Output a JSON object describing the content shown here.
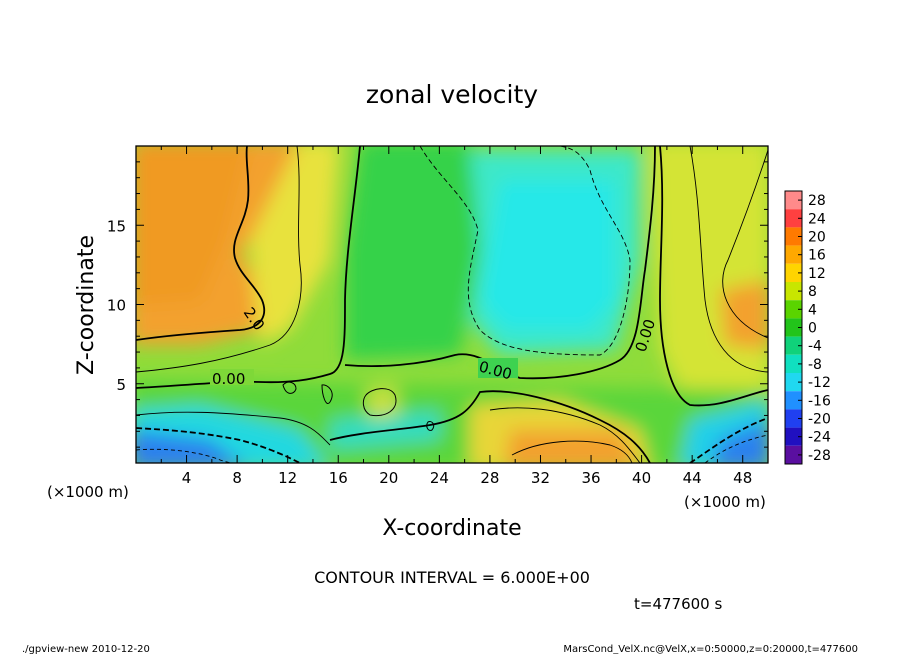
{
  "chart_data": {
    "type": "heatmap",
    "title": "zonal velocity",
    "xlabel": "X-coordinate",
    "ylabel": "Z-coordinate",
    "x_unit": "(×1000 m)",
    "x_unit_secondary": "(×1000 m)",
    "xlim": [
      0,
      50
    ],
    "ylim": [
      0,
      20
    ],
    "x_ticks": [
      4,
      8,
      12,
      16,
      20,
      24,
      28,
      32,
      36,
      40,
      44,
      48
    ],
    "y_ticks": [
      5,
      10,
      15
    ],
    "colorbar": {
      "levels": [
        28,
        24,
        20,
        16,
        12,
        8,
        4,
        0,
        -4,
        -8,
        -12,
        -16,
        -20,
        -24,
        -28
      ],
      "colors": [
        "#ff8a8a",
        "#ff4040",
        "#ff7a00",
        "#ffa800",
        "#ffd400",
        "#c8e600",
        "#5ad400",
        "#22c41a",
        "#10d27a",
        "#10e0c0",
        "#20d8f0",
        "#2090ff",
        "#2040f0",
        "#2010c0",
        "#5a0fa0"
      ]
    },
    "contour_labels": [
      "2.0",
      "0.00",
      "0.00",
      "0.00"
    ],
    "contour_interval": "CONTOUR INTERVAL = 6.000E+00",
    "time": "t=477600 s",
    "grid": false
  },
  "footer": {
    "left": "./gpview-new  2010-12-20",
    "right": "MarsCond_VelX.nc@VelX,x=0:50000,z=0:20000,t=477600"
  },
  "colors": {
    "orange": "#f3a12e",
    "yellow": "#f0d83c",
    "yellow_green": "#b5e236",
    "green": "#3fd43c",
    "cyan": "#22e4e0",
    "blue": "#2a8ae8",
    "frame": "#000000"
  }
}
